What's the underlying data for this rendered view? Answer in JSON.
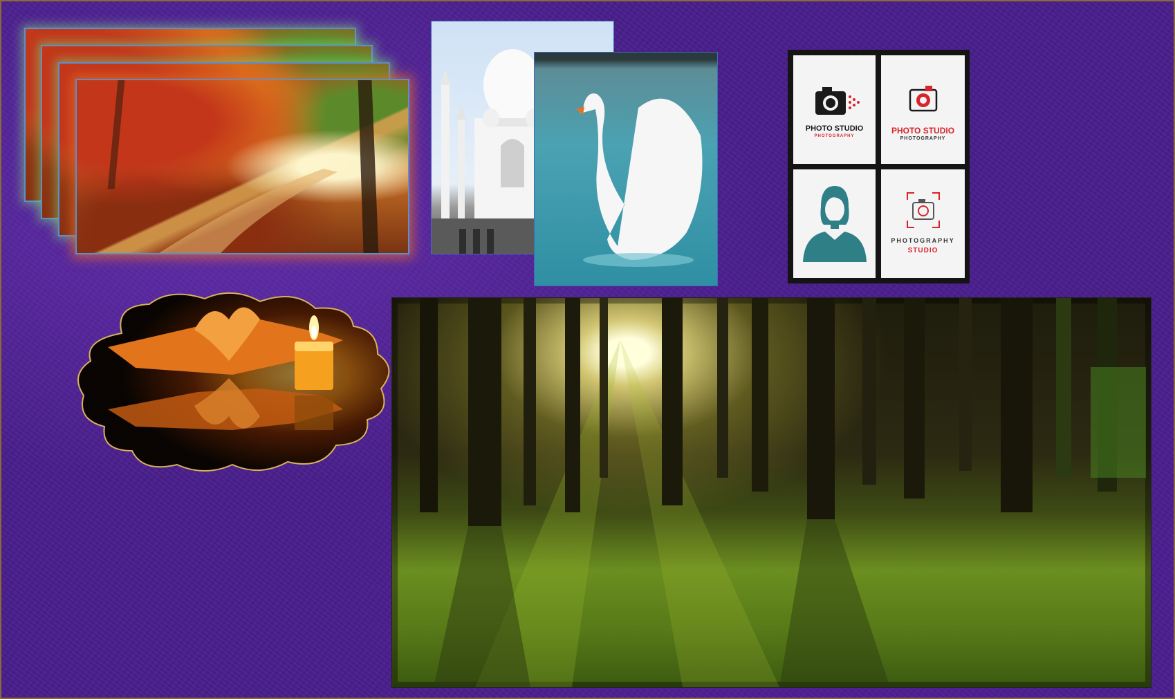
{
  "slide": {
    "background": "#4a1f8c",
    "border_color": "#8a6a3a"
  },
  "images": {
    "autumn_stack": {
      "description": "autumn forest path",
      "layers": 4
    },
    "taj_mahal": {
      "description": "taj mahal"
    },
    "swan": {
      "description": "white swan on water"
    },
    "candle_book": {
      "description": "candle and book with heart-shaped pages"
    },
    "forest": {
      "description": "sunlit forest"
    }
  },
  "logos": {
    "tile1": {
      "title": "PHOTO STUDIO",
      "subtitle": "PHOTOGRAPHY",
      "icon": "camera-icon"
    },
    "tile2": {
      "title": "PHOTO STUDIO",
      "subtitle": "PHOTOGRAPHY",
      "icon": "camera-icon"
    },
    "tile3": {
      "icon": "person-avatar-icon"
    },
    "tile4": {
      "title": "PHOTOGRAPHY",
      "subtitle": "STUDIO",
      "icon": "camera-outline-icon"
    }
  },
  "colors": {
    "accent_red": "#d8242c",
    "teal": "#2f7f86"
  }
}
